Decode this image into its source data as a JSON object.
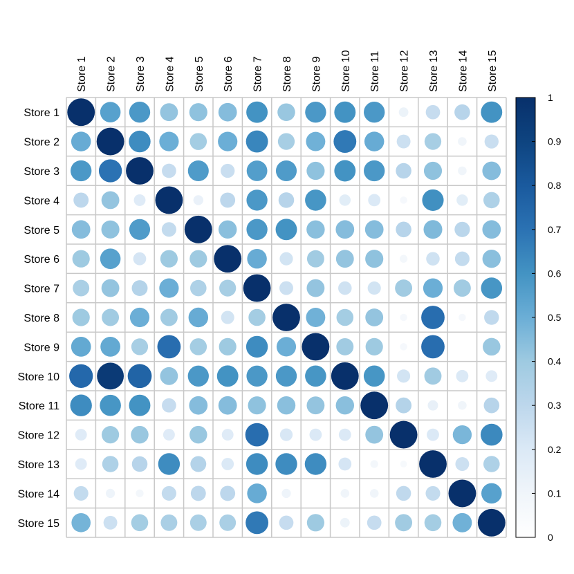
{
  "chart_data": {
    "type": "correlation-matrix",
    "method": "circle",
    "labels": [
      "Store 1",
      "Store 2",
      "Store 3",
      "Store 4",
      "Store 5",
      "Store 6",
      "Store 7",
      "Store 8",
      "Store 9",
      "Store 10",
      "Store 11",
      "Store 12",
      "Store 13",
      "Store 14",
      "Store 15"
    ],
    "matrix": [
      [
        1.0,
        0.55,
        0.58,
        0.42,
        0.43,
        0.45,
        0.6,
        0.41,
        0.58,
        0.6,
        0.58,
        0.12,
        0.27,
        0.32,
        0.6
      ],
      [
        0.51,
        1.0,
        0.62,
        0.5,
        0.38,
        0.5,
        0.64,
        0.37,
        0.49,
        0.68,
        0.51,
        0.25,
        0.37,
        0.1,
        0.26
      ],
      [
        0.58,
        0.7,
        1.0,
        0.27,
        0.57,
        0.26,
        0.56,
        0.57,
        0.43,
        0.6,
        0.58,
        0.32,
        0.43,
        0.1,
        0.45
      ],
      [
        0.3,
        0.42,
        0.18,
        1.0,
        0.13,
        0.3,
        0.58,
        0.32,
        0.59,
        0.17,
        0.2,
        0.07,
        0.61,
        0.17,
        0.35
      ],
      [
        0.45,
        0.43,
        0.57,
        0.28,
        1.0,
        0.44,
        0.58,
        0.6,
        0.44,
        0.45,
        0.45,
        0.32,
        0.46,
        0.31,
        0.45
      ],
      [
        0.4,
        0.55,
        0.22,
        0.4,
        0.4,
        1.0,
        0.51,
        0.23,
        0.39,
        0.42,
        0.43,
        0.08,
        0.24,
        0.28,
        0.44
      ],
      [
        0.36,
        0.42,
        0.33,
        0.5,
        0.35,
        0.37,
        1.0,
        0.25,
        0.42,
        0.24,
        0.23,
        0.39,
        0.5,
        0.39,
        0.59
      ],
      [
        0.4,
        0.39,
        0.5,
        0.39,
        0.51,
        0.23,
        0.38,
        1.0,
        0.49,
        0.38,
        0.42,
        0.07,
        0.72,
        0.07,
        0.29
      ],
      [
        0.52,
        0.52,
        0.37,
        0.72,
        0.38,
        0.4,
        0.62,
        0.5,
        1.0,
        0.39,
        0.4,
        0.07,
        0.72,
        0.0,
        0.41
      ],
      [
        0.74,
        0.95,
        0.76,
        0.42,
        0.58,
        0.6,
        0.58,
        0.58,
        0.59,
        1.0,
        0.59,
        0.23,
        0.39,
        0.2,
        0.18
      ],
      [
        0.62,
        0.59,
        0.6,
        0.27,
        0.45,
        0.45,
        0.43,
        0.44,
        0.42,
        0.44,
        1.0,
        0.33,
        0.14,
        0.1,
        0.32
      ],
      [
        0.18,
        0.4,
        0.41,
        0.18,
        0.41,
        0.18,
        0.72,
        0.21,
        0.2,
        0.2,
        0.42,
        1.0,
        0.2,
        0.47,
        0.63
      ],
      [
        0.18,
        0.35,
        0.32,
        0.62,
        0.33,
        0.2,
        0.62,
        0.62,
        0.62,
        0.22,
        0.08,
        0.06,
        1.0,
        0.25,
        0.35
      ],
      [
        0.28,
        0.11,
        0.08,
        0.28,
        0.3,
        0.3,
        0.51,
        0.11,
        0.0,
        0.1,
        0.1,
        0.29,
        0.28,
        1.0,
        0.55
      ],
      [
        0.48,
        0.25,
        0.38,
        0.36,
        0.36,
        0.36,
        0.68,
        0.27,
        0.4,
        0.12,
        0.27,
        0.39,
        0.38,
        0.49,
        1.0
      ]
    ],
    "colorbar": {
      "range": [
        0,
        1
      ],
      "ticks": [
        "0",
        "0.1",
        "0.2",
        "0.3",
        "0.4",
        "0.5",
        "0.6",
        "0.7",
        "0.8",
        "0.9",
        "1"
      ]
    },
    "grid": true,
    "legend_position": "right"
  }
}
